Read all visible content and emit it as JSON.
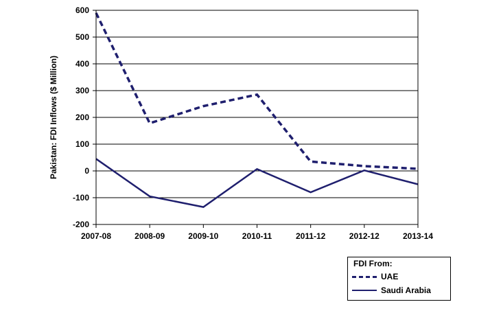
{
  "chart_data": {
    "type": "line",
    "title": "",
    "xlabel": "",
    "ylabel": "Pakistan: FDI Inflows ($ Million)",
    "categories": [
      "2007-08",
      "2008-09",
      "2009-10",
      "2010-11",
      "2011-12",
      "2012-12",
      "2013-14"
    ],
    "ylim": [
      -200,
      600
    ],
    "yticks": [
      -200,
      -100,
      0,
      100,
      200,
      300,
      400,
      500,
      600
    ],
    "grid": true,
    "legend_position": "bottom-right",
    "legend_title": "FDI From:",
    "series": [
      {
        "name": "UAE",
        "style": "dashed",
        "color": "#1f1f6e",
        "values": [
          590,
          178,
          242,
          285,
          35,
          18,
          8
        ]
      },
      {
        "name": "Saudi Arabia",
        "style": "solid",
        "color": "#1f1f6e",
        "values": [
          45,
          -95,
          -135,
          7,
          -80,
          2,
          -50
        ]
      }
    ]
  }
}
